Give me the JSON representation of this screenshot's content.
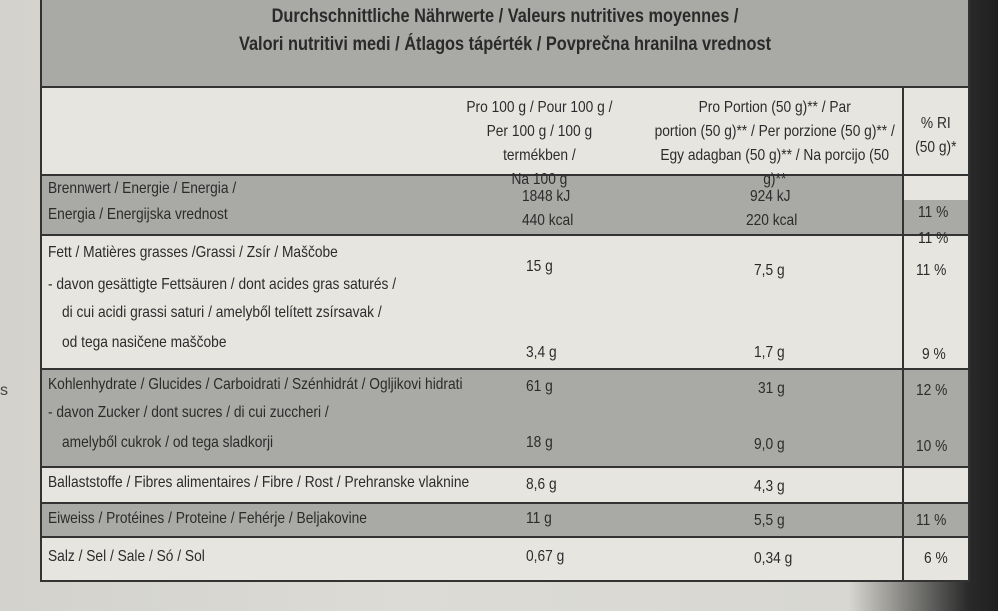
{
  "side_fragment": "s",
  "header": {
    "line1": "Durchschnittliche Nährwerte / Valeurs nutritives moyennes /",
    "line2": "Valori nutritivi medi / Átlagos tápérték / Povprečna hranilna vrednost"
  },
  "columns": {
    "per100": [
      "Pro 100 g / Pour 100 g /",
      "Per 100 g / 100 g termékben /",
      "Na 100 g"
    ],
    "portion": [
      "Pro Portion (50 g)** / Par",
      "portion (50 g)** / Per porzione (50 g)** /",
      "Egy adagban (50 g)** / Na porcijo (50 g)**"
    ],
    "ri": [
      "% RI",
      "(50 g)*"
    ]
  },
  "rows": {
    "energy": {
      "label1": "Brennwert / Energie / Energia /",
      "label2": "Energia / Energijska vrednost",
      "per100_kj": "1848 kJ",
      "per100_kcal": "440 kcal",
      "portion_kj": "924 kJ",
      "portion_kcal": "220 kcal",
      "ri_1": "11 %",
      "ri_2": "11 %"
    },
    "fat": {
      "label": "Fett / Matières grasses /Grassi / Zsír / Maščobe",
      "per100": "15 g",
      "portion": "7,5 g",
      "ri": "11 %"
    },
    "saturates": {
      "label1": " - davon gesättigte Fettsäuren / dont acides gras saturés /",
      "label2": "di cui acidi grassi saturi / amelyből telített zsírsavak /",
      "label3": "od tega nasičene maščobe",
      "per100": "3,4 g",
      "portion": "1,7 g",
      "ri": "9 %"
    },
    "carbs": {
      "label": "Kohlenhydrate / Glucides / Carboidrati / Szénhidrát / Ogljikovi hidrati",
      "per100": "61 g",
      "portion": "31 g",
      "ri": "12 %"
    },
    "sugars": {
      "label1": " - davon Zucker / dont sucres / di cui zuccheri /",
      "label2": "amelyből cukrok / od tega sladkorji",
      "per100": "18 g",
      "portion": "9,0 g",
      "ri": "10 %"
    },
    "fibre": {
      "label": "Ballaststoffe / Fibres alimentaires / Fibre / Rost / Prehranske vlaknine",
      "per100": "8,6 g",
      "portion": "4,3 g"
    },
    "protein": {
      "label": "Eiweiss / Protéines / Proteine / Fehérje / Beljakovine",
      "per100": "11 g",
      "portion": "5,5 g",
      "ri": "11 %"
    },
    "salt": {
      "label": "Salz / Sel / Sale / Só / Sol",
      "per100": "0,67 g",
      "portion": "0,34 g",
      "ri": "6 %"
    }
  }
}
